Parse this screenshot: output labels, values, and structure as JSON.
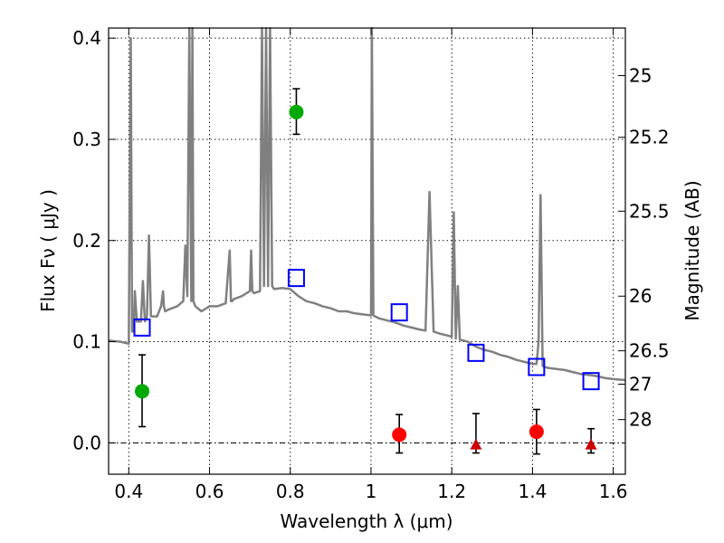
{
  "chart_data": {
    "type": "scatter",
    "xlabel": "Wavelength  λ (μm)",
    "ylabel": "Flux  Fν  ( μJy )",
    "ylabel_right": "Magnitude (AB)",
    "xlim": [
      0.35,
      1.63
    ],
    "ylim": [
      -0.031,
      0.41
    ],
    "grid": true,
    "x_ticks": [
      0.4,
      0.6,
      0.8,
      1.0,
      1.2,
      1.4,
      1.6
    ],
    "x_tick_labels": [
      "0.4",
      "0.6",
      "0.8",
      "1",
      "1.2",
      "1.4",
      "1.6"
    ],
    "y_ticks": [
      0.0,
      0.1,
      0.2,
      0.3,
      0.4
    ],
    "y_tick_labels": [
      "0.0",
      "0.1",
      "0.2",
      "0.3",
      "0.4"
    ],
    "right_ticks": [
      {
        "label": "25",
        "flux": 0.363
      },
      {
        "label": "25.2",
        "flux": 0.302
      },
      {
        "label": "25.5",
        "flux": 0.229
      },
      {
        "label": "26",
        "flux": 0.145
      },
      {
        "label": "26.5",
        "flux": 0.091
      },
      {
        "label": "27",
        "flux": 0.058
      },
      {
        "label": "28",
        "flux": 0.023
      }
    ],
    "series": [
      {
        "kind": "spectrum",
        "color": "#808080",
        "x": [
          0.35,
          0.38,
          0.4,
          0.405,
          0.408,
          0.412,
          0.415,
          0.42,
          0.43,
          0.435,
          0.44,
          0.445,
          0.45,
          0.455,
          0.46,
          0.47,
          0.48,
          0.485,
          0.487,
          0.49,
          0.5,
          0.52,
          0.535,
          0.54,
          0.545,
          0.55,
          0.555,
          0.5575,
          0.56,
          0.565,
          0.58,
          0.6,
          0.62,
          0.64,
          0.65,
          0.653,
          0.656,
          0.66,
          0.68,
          0.7,
          0.703,
          0.706,
          0.71,
          0.725,
          0.73,
          0.735,
          0.74,
          0.745,
          0.75,
          0.755,
          0.76,
          0.78,
          0.8,
          0.82,
          0.84,
          0.86,
          0.88,
          0.9,
          0.92,
          0.94,
          0.96,
          0.98,
          1.0,
          1.002,
          1.006,
          1.01,
          1.02,
          1.04,
          1.06,
          1.08,
          1.1,
          1.12,
          1.135,
          1.145,
          1.155,
          1.17,
          1.19,
          1.2,
          1.205,
          1.21,
          1.215,
          1.22,
          1.24,
          1.26,
          1.28,
          1.3,
          1.32,
          1.34,
          1.36,
          1.38,
          1.4,
          1.41,
          1.415,
          1.42,
          1.425,
          1.43,
          1.44,
          1.46,
          1.48,
          1.5,
          1.52,
          1.54,
          1.56,
          1.58,
          1.6,
          1.63
        ],
        "y": [
          0.101,
          0.1,
          0.098,
          0.4,
          0.11,
          0.11,
          0.15,
          0.12,
          0.12,
          0.16,
          0.12,
          0.125,
          0.205,
          0.125,
          0.125,
          0.125,
          0.135,
          0.15,
          0.135,
          0.13,
          0.132,
          0.135,
          0.14,
          0.195,
          0.145,
          0.41,
          0.14,
          0.41,
          0.14,
          0.135,
          0.13,
          0.135,
          0.135,
          0.138,
          0.19,
          0.14,
          0.14,
          0.142,
          0.145,
          0.15,
          0.19,
          0.15,
          0.148,
          0.15,
          0.41,
          0.155,
          0.41,
          0.155,
          0.41,
          0.155,
          0.152,
          0.153,
          0.152,
          0.145,
          0.14,
          0.138,
          0.135,
          0.133,
          0.13,
          0.13,
          0.128,
          0.127,
          0.126,
          0.41,
          0.126,
          0.125,
          0.123,
          0.121,
          0.119,
          0.116,
          0.114,
          0.112,
          0.111,
          0.248,
          0.11,
          0.108,
          0.106,
          0.105,
          0.228,
          0.103,
          0.155,
          0.102,
          0.1,
          0.095,
          0.092,
          0.09,
          0.087,
          0.085,
          0.082,
          0.08,
          0.078,
          0.078,
          0.1,
          0.245,
          0.076,
          0.075,
          0.074,
          0.073,
          0.072,
          0.07,
          0.068,
          0.067,
          0.066,
          0.064,
          0.063,
          0.062
        ]
      },
      {
        "kind": "model_photometry",
        "marker": "open-square",
        "color": "#0000ff",
        "x": [
          0.433,
          0.815,
          1.07,
          1.26,
          1.41,
          1.545
        ],
        "y": [
          0.114,
          0.163,
          0.129,
          0.089,
          0.075,
          0.061
        ]
      },
      {
        "kind": "detections",
        "marker": "filled-circle",
        "color": "#00aa00",
        "x": [
          0.433,
          0.815
        ],
        "y": [
          0.051,
          0.327
        ],
        "err_low": [
          0.016,
          0.305
        ],
        "err_high": [
          0.087,
          0.35
        ]
      },
      {
        "kind": "red-detections",
        "marker": "filled-circle",
        "color": "#ff0000",
        "x": [
          1.07,
          1.41
        ],
        "y": [
          0.008,
          0.011
        ],
        "err_low": [
          -0.01,
          -0.011
        ],
        "err_high": [
          0.028,
          0.033
        ]
      },
      {
        "kind": "red-limits",
        "marker": "filled-triangle",
        "color": "#cc0000",
        "x": [
          1.26,
          1.545
        ],
        "y": [
          -0.002,
          -0.002
        ],
        "err_low": [
          -0.01,
          -0.01
        ],
        "err_high": [
          0.029,
          0.014
        ]
      }
    ]
  }
}
